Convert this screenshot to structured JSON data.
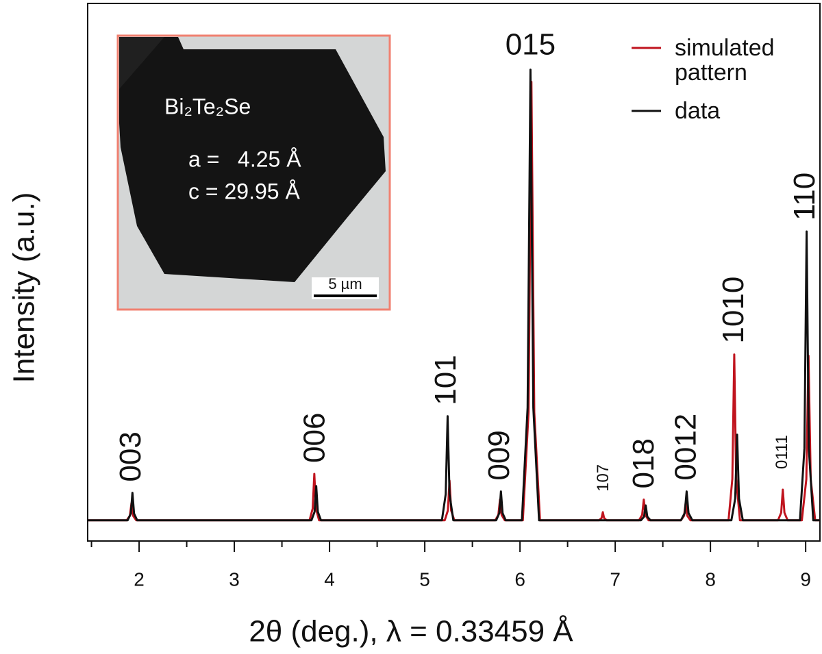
{
  "chart_data": {
    "type": "line",
    "x_label": "2θ (deg.), λ = 0.33459 Å",
    "y_label": "Intensity (a.u.)",
    "xlim": [
      1.46,
      9.15
    ],
    "ylim": [
      -4.6,
      114.7
    ],
    "xticks": [
      2,
      3,
      4,
      5,
      6,
      7,
      8,
      9
    ],
    "xminorticks": [
      1.5,
      2.5,
      3.5,
      4.5,
      5.5,
      6.5,
      7.5,
      8.5
    ],
    "legend": "upper right",
    "series": [
      {
        "name": "simulated pattern",
        "color": "#c0141e",
        "x": [
          1.46,
          1.87,
          1.903,
          1.92,
          1.937,
          1.97,
          3.79,
          3.823,
          3.84,
          3.857,
          3.89,
          5.21,
          5.243,
          5.26,
          5.277,
          5.31,
          5.74,
          5.773,
          5.79,
          5.807,
          5.84,
          6.03,
          6.09,
          6.12,
          6.15,
          6.21,
          6.83,
          6.857,
          6.87,
          6.883,
          6.91,
          7.25,
          7.283,
          7.3,
          7.317,
          7.35,
          7.69,
          7.723,
          7.74,
          7.757,
          7.79,
          8.19,
          8.23,
          8.25,
          8.27,
          8.31,
          8.71,
          8.743,
          8.76,
          8.777,
          8.81,
          8.96,
          9.007,
          9.03,
          9.053,
          9.1,
          9.15
        ],
        "values": [
          0,
          0,
          1,
          3.8,
          1,
          0,
          0,
          2.6,
          10.3,
          2.6,
          0,
          0,
          2.2,
          8.8,
          2.2,
          0,
          0,
          1.2,
          4.6,
          1.2,
          0,
          0,
          24,
          97.3,
          24,
          0,
          0,
          0.5,
          1.8,
          0.5,
          0,
          0,
          1.2,
          4.6,
          1.2,
          0,
          0,
          1,
          3.8,
          1,
          0,
          0,
          9.2,
          36.8,
          9.2,
          0,
          0,
          1.7,
          6.8,
          1.7,
          0,
          0,
          9.1,
          36.5,
          9.1,
          0,
          0
        ]
      },
      {
        "name": "data",
        "color": "#111111",
        "x": [
          1.46,
          1.88,
          1.913,
          1.93,
          1.947,
          1.98,
          3.81,
          3.843,
          3.86,
          3.877,
          3.91,
          5.18,
          5.22,
          5.24,
          5.26,
          5.3,
          5.75,
          5.783,
          5.8,
          5.817,
          5.85,
          6.02,
          6.08,
          6.11,
          6.14,
          6.2,
          7.27,
          7.303,
          7.32,
          7.337,
          7.37,
          7.69,
          7.73,
          7.75,
          7.77,
          7.81,
          8.22,
          8.26,
          8.28,
          8.3,
          8.34,
          8.94,
          8.987,
          9.01,
          9.033,
          9.08,
          9.15
        ],
        "values": [
          0,
          0,
          1.5,
          6.1,
          1.5,
          0,
          0,
          1.9,
          7.6,
          1.9,
          0,
          0,
          5.8,
          23.1,
          5.8,
          0,
          0,
          1.6,
          6.4,
          1.6,
          0,
          0,
          25,
          100,
          25,
          0,
          0,
          0.8,
          3.3,
          0.8,
          0,
          0,
          1.6,
          6.4,
          1.6,
          0,
          0,
          4.8,
          19,
          4.8,
          0,
          0,
          16,
          64.1,
          16,
          0,
          0
        ]
      }
    ],
    "annotations": [
      {
        "text": "003",
        "x": 1.93
      },
      {
        "text": "006",
        "x": 3.86
      },
      {
        "text": "101",
        "x": 5.24
      },
      {
        "text": "009",
        "x": 5.8
      },
      {
        "text": "015",
        "x": 6.11
      },
      {
        "text": "107",
        "x": 6.88
      },
      {
        "text": "018",
        "x": 7.32
      },
      {
        "text": "0012",
        "x": 7.76
      },
      {
        "text": "1010",
        "x": 8.26
      },
      {
        "text": "0111",
        "x": 8.76
      },
      {
        "text": "110",
        "x": 9.01
      }
    ],
    "inset": {
      "formula": "Bi₂Te₂Se",
      "a": "a =   4.25 Å",
      "c": "c = 29.95 Å",
      "scale_bar": "5 µm"
    }
  }
}
